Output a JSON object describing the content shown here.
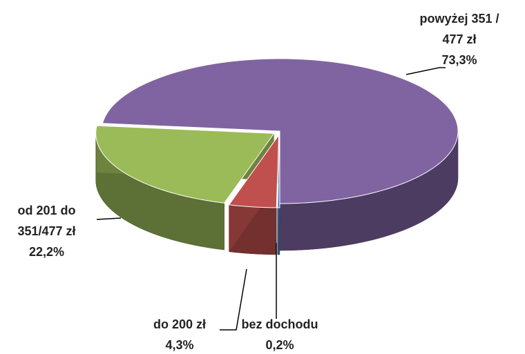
{
  "chart_data": {
    "type": "pie3d",
    "categories": [
      "bez dochodu",
      "do 200 zł",
      "od 201 do 351/477 zł",
      "powyżej 351 / 477 zł"
    ],
    "values": [
      0.2,
      4.3,
      22.2,
      73.3
    ],
    "value_labels": [
      "0,2%",
      "4,3%",
      "22,2%",
      "73,3%"
    ],
    "colors": [
      "#4f81bd",
      "#c0504d",
      "#9bbb59",
      "#8064a2"
    ]
  }
}
